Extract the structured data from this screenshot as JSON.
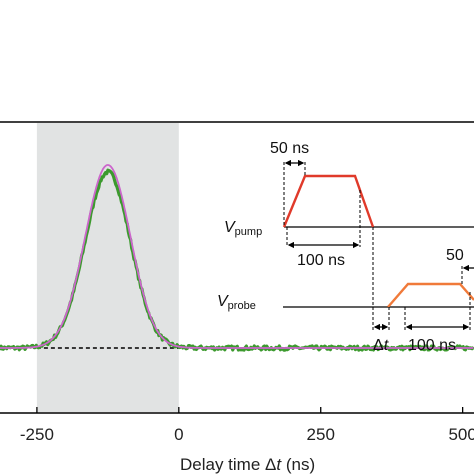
{
  "chart_data": {
    "type": "line",
    "title": "",
    "xlabel_prefix": "Delay time ",
    "xlabel_delta": "Δ",
    "xlabel_var": "t",
    "xlabel_unit": " (ns)",
    "x_ticks": [
      -250,
      0,
      250,
      500
    ],
    "x_tick_labels": [
      "-250",
      "0",
      "250",
      "500"
    ],
    "xlim": [
      -315,
      520
    ],
    "ylim": [
      -0.08,
      1.2
    ],
    "grid": false,
    "shaded_region": {
      "x0": -250,
      "x1": 0,
      "color": "#e1e3e3"
    },
    "baseline": {
      "y": 0,
      "style": "dashed",
      "color": "#000000"
    },
    "series": [
      {
        "style": "noisy",
        "color": "#3c9a2e",
        "peak_x": -125,
        "peak_y": 1.0,
        "sigma": 40,
        "noise": 0.012
      },
      {
        "style": "fit",
        "color": "#cc66cc",
        "peak_x": -125,
        "peak_y": 1.04,
        "sigma": 40
      }
    ],
    "inset": {
      "pump_label_main": "V",
      "pump_label_sub": "pump",
      "probe_label_main": "V",
      "probe_label_sub": "probe",
      "pump_color": "#e03a2a",
      "probe_color": "#f07a3a",
      "rise_label": "50 ns",
      "width_label": "100 ns",
      "probe_rise_label": "50",
      "probe_width_label": "100 ns",
      "delay_label_delta": "Δ",
      "delay_label_var": "t"
    }
  }
}
